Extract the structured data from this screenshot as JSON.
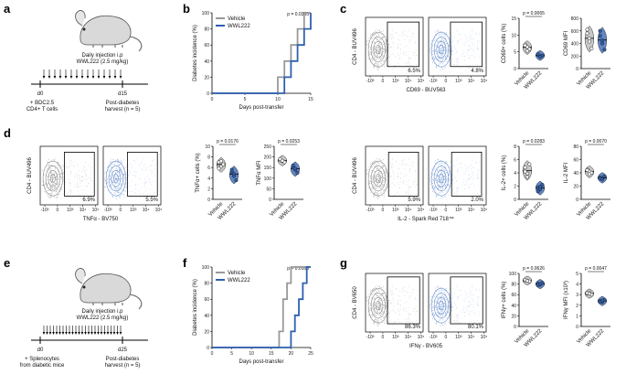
{
  "panel_labels": [
    "a",
    "b",
    "c",
    "d",
    "e",
    "f",
    "g"
  ],
  "colors": {
    "vehicle": "#999999",
    "wwl222": "#2f5fb0",
    "flow_gray": "#8c8c8c",
    "flow_blue": "#6d93cf"
  },
  "icons": [
    "mouse-icon",
    "mouse-icon"
  ],
  "panel_a": {
    "injection": "Daily injection i.p",
    "dose": "WWL222 (2.5 mg/kg)",
    "start_day": "d0",
    "end_day": "d15",
    "transfer_line1": "+ BDC2.5",
    "transfer_line2": "CD4+ T cells",
    "harvest_line1": "Post-diabetes",
    "harvest_line2": "harvest (n = 5)"
  },
  "panel_e": {
    "injection": "Daily injection i.p",
    "dose": "WWL222 (2.5 mg/kg)",
    "start_day": "d0",
    "end_day": "d25",
    "transfer_line1": "+ Splenocytes",
    "transfer_line2": "from diabetic mice",
    "harvest_line1": "Post-diabetes",
    "harvest_line2": "harvest (n = 5)"
  },
  "chart_data": [
    {
      "id": "b",
      "type": "line",
      "step": true,
      "xlabel": "Days post-transfer",
      "ylabel": "Diabetes incidence (%)",
      "xlim": [
        0,
        15
      ],
      "ylim": [
        0,
        100
      ],
      "xticks": [
        0,
        5,
        10,
        15
      ],
      "yticks": [
        0,
        20,
        40,
        60,
        80,
        100
      ],
      "pvalue": "p = 0.0355",
      "legend": [
        "Vehicle",
        "WWL222"
      ],
      "series": [
        {
          "name": "Vehicle",
          "color": "#999999",
          "x": [
            0,
            9,
            10,
            11,
            12,
            13,
            14
          ],
          "y": [
            0,
            0,
            20,
            40,
            60,
            80,
            100
          ]
        },
        {
          "name": "WWL222",
          "color": "#2f5fb0",
          "x": [
            0,
            10,
            11,
            12,
            13,
            14,
            15
          ],
          "y": [
            0,
            0,
            20,
            40,
            60,
            80,
            100
          ]
        }
      ]
    },
    {
      "id": "f",
      "type": "line",
      "step": true,
      "xlabel": "Days post-transfer",
      "ylabel": "Diabetes incidence (%)",
      "xlim": [
        0,
        25
      ],
      "ylim": [
        0,
        100
      ],
      "xticks": [
        0,
        5,
        10,
        15,
        20,
        25
      ],
      "yticks": [
        0,
        20,
        40,
        60,
        80,
        100
      ],
      "pvalue": "p = 0.0163",
      "legend": [
        "Vehicle",
        "WWL222"
      ],
      "series": [
        {
          "name": "Vehicle",
          "color": "#999999",
          "x": [
            0,
            16,
            17,
            18,
            19,
            20
          ],
          "y": [
            0,
            0,
            20,
            60,
            80,
            100
          ]
        },
        {
          "name": "WWL222",
          "color": "#2f5fb0",
          "x": [
            0,
            19,
            20,
            21,
            22,
            23,
            24
          ],
          "y": [
            0,
            0,
            20,
            40,
            60,
            80,
            100
          ]
        }
      ]
    },
    {
      "id": "c_cd69_pct",
      "type": "scatter",
      "ylabel": "CD69+ cells (%)",
      "ylim": [
        0,
        15
      ],
      "yticks": [
        0,
        5,
        10,
        15
      ],
      "categories": [
        "Vehicle",
        "WWL222"
      ],
      "pvalue": "p = 0.0065",
      "series": [
        {
          "name": "Vehicle",
          "values": [
            7.2,
            6.4,
            5.8,
            6.9,
            5.3
          ]
        },
        {
          "name": "WWL222",
          "values": [
            4.1,
            3.6,
            3.9,
            4.3,
            3.5
          ]
        }
      ]
    },
    {
      "id": "c_cd69_mfi",
      "type": "scatter",
      "ylabel": "CD69 MFI",
      "ylim": [
        0,
        800
      ],
      "yticks": [
        0,
        200,
        400,
        600,
        800
      ],
      "categories": [
        "Vehicle",
        "WWL222"
      ],
      "pvalue": "",
      "series": [
        {
          "name": "Vehicle",
          "values": [
            560,
            430,
            320,
            620,
            480
          ]
        },
        {
          "name": "WWL222",
          "values": [
            520,
            400,
            300,
            600,
            450
          ]
        }
      ]
    },
    {
      "id": "d_tnf_pct",
      "type": "scatter",
      "ylabel": "TNFα+ cells (%)",
      "ylim": [
        0,
        10
      ],
      "yticks": [
        0,
        2,
        4,
        6,
        8,
        10
      ],
      "categories": [
        "Vehicle",
        "WWL222"
      ],
      "pvalue": "p = 0.0176",
      "series": [
        {
          "name": "Vehicle",
          "values": [
            7.0,
            6.2,
            6.6,
            5.8,
            7.2
          ]
        },
        {
          "name": "WWL222",
          "values": [
            5.2,
            4.4,
            3.6,
            5.6,
            4.8
          ]
        }
      ]
    },
    {
      "id": "d_tnf_mfi",
      "type": "scatter",
      "ylabel": "TNFα MFI",
      "ylim": [
        0,
        250
      ],
      "yticks": [
        0,
        50,
        100,
        150,
        200,
        250
      ],
      "categories": [
        "Vehicle",
        "WWL222"
      ],
      "pvalue": "p = 0.0253",
      "series": [
        {
          "name": "Vehicle",
          "values": [
            185,
            180,
            175,
            190,
            182
          ]
        },
        {
          "name": "WWL222",
          "values": [
            150,
            140,
            125,
            160,
            145
          ]
        }
      ]
    },
    {
      "id": "d_il2_pct",
      "type": "scatter",
      "ylabel": "IL-2+ cells (%)",
      "ylim": [
        0,
        8
      ],
      "yticks": [
        0,
        2,
        4,
        6,
        8
      ],
      "categories": [
        "Vehicle",
        "WWL222"
      ],
      "pvalue": "p = 0.0283",
      "series": [
        {
          "name": "Vehicle",
          "values": [
            4.8,
            3.9,
            5.3,
            4.2,
            3.4
          ]
        },
        {
          "name": "WWL222",
          "values": [
            1.8,
            1.5,
            2.2,
            1.2,
            1.9
          ]
        }
      ]
    },
    {
      "id": "d_il2_mfi",
      "type": "scatter",
      "ylabel": "IL-2 MFI",
      "ylim": [
        0,
        80
      ],
      "yticks": [
        0,
        20,
        40,
        60,
        80
      ],
      "categories": [
        "Vehicle",
        "WWL222"
      ],
      "pvalue": "p = 0.0070",
      "series": [
        {
          "name": "Vehicle",
          "values": [
            45,
            42,
            40,
            44,
            38
          ]
        },
        {
          "name": "WWL222",
          "values": [
            33,
            31,
            35,
            32,
            30
          ]
        }
      ]
    },
    {
      "id": "g_ifn_pct",
      "type": "scatter",
      "ylabel": "IFNγ+ cells (%)",
      "ylim": [
        0,
        100
      ],
      "yticks": [
        0,
        20,
        40,
        60,
        80,
        100
      ],
      "categories": [
        "Vehicle",
        "WWL222"
      ],
      "pvalue": "p = 0.0626",
      "series": [
        {
          "name": "Vehicle",
          "values": [
            87,
            86,
            85,
            88,
            86
          ]
        },
        {
          "name": "WWL222",
          "values": [
            81,
            79,
            82,
            78,
            80
          ]
        }
      ]
    },
    {
      "id": "g_ifn_mfi",
      "type": "scatter",
      "ylabel": "IFNγ MFI (x10³)",
      "ylim": [
        0,
        5
      ],
      "yticks": [
        0,
        1,
        2,
        3,
        4,
        5
      ],
      "categories": [
        "Vehicle",
        "WWL222"
      ],
      "pvalue": "p = 0.0047",
      "series": [
        {
          "name": "Vehicle",
          "values": [
            3.1,
            3.2,
            3.0,
            3.15,
            3.1
          ]
        },
        {
          "name": "WWL222",
          "values": [
            2.4,
            2.3,
            2.5,
            2.35,
            2.45
          ]
        }
      ]
    },
    {
      "id": "flow_cd69",
      "type": "scatter",
      "xlabel": "CD69 - BUV563",
      "ylabel": "CD4 - BUV496",
      "xticks": [
        "-10³",
        "0",
        "10³",
        "10⁴",
        "10⁵"
      ],
      "gate_pct": [
        "6.5%",
        "4.8%"
      ]
    },
    {
      "id": "flow_tnf",
      "type": "scatter",
      "xlabel": "TNFα - BV750",
      "ylabel": "CD4 - BUV496",
      "xticks": [
        "-10³",
        "0",
        "10³",
        "10⁴",
        "10⁵"
      ],
      "gate_pct": [
        "6.9%",
        "5.5%"
      ]
    },
    {
      "id": "flow_il2",
      "type": "scatter",
      "xlabel": "IL-2 - Spark Red 718™",
      "ylabel": "CD4 - BUV496",
      "xticks": [
        "-10³",
        "0",
        "10³",
        "10⁴",
        "10⁵"
      ],
      "gate_pct": [
        "5.9%",
        "2.0%"
      ]
    },
    {
      "id": "flow_ifn",
      "type": "scatter",
      "xlabel": "IFNγ - BV605",
      "ylabel": "CD4 - BV650",
      "xticks": [
        "-10³",
        "0",
        "10³",
        "10⁴",
        "10⁵"
      ],
      "gate_pct": [
        "86.3%",
        "80.1%"
      ]
    }
  ]
}
